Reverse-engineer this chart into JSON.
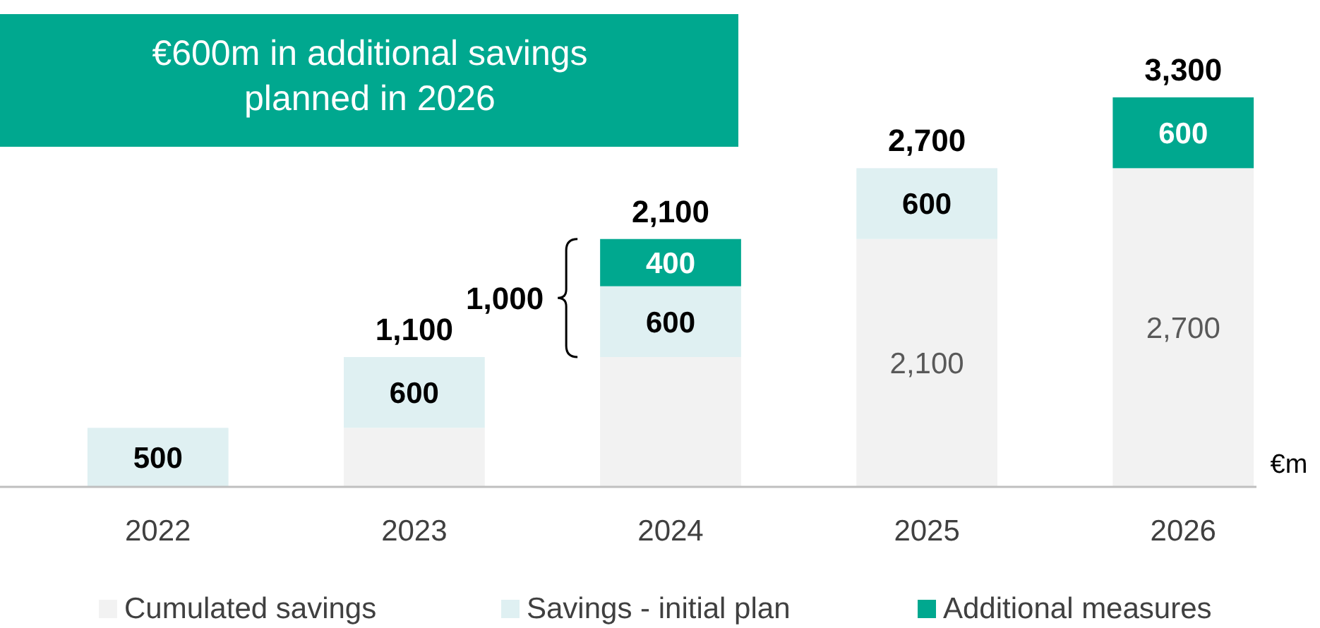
{
  "chart_data": {
    "type": "bar",
    "stacked": true,
    "title": "€600m in additional savings planned in 2026",
    "categories": [
      "2022",
      "2023",
      "2024",
      "2025",
      "2026"
    ],
    "series": [
      {
        "name": "Cumulated savings",
        "color": "#f2f2f2",
        "values": [
          0,
          500,
          1100,
          2100,
          2700
        ],
        "value_labels": [
          null,
          null,
          null,
          "2,100",
          "2,700"
        ]
      },
      {
        "name": "Savings - initial plan",
        "color": "#dff0f2",
        "values": [
          500,
          600,
          600,
          600,
          0
        ],
        "value_labels": [
          "500",
          "600",
          "600",
          "600",
          null
        ]
      },
      {
        "name": "Additional measures",
        "color": "#00a88f",
        "values": [
          0,
          0,
          400,
          0,
          600
        ],
        "value_labels": [
          null,
          null,
          "400",
          null,
          "600"
        ]
      }
    ],
    "totals": [
      null,
      "1,100",
      "2,100",
      "2,700",
      "3,300"
    ],
    "ylim": [
      0,
      3300
    ],
    "annotations": [
      "1,000",
      "€m"
    ],
    "legend": "bottom",
    "grid": false
  }
}
